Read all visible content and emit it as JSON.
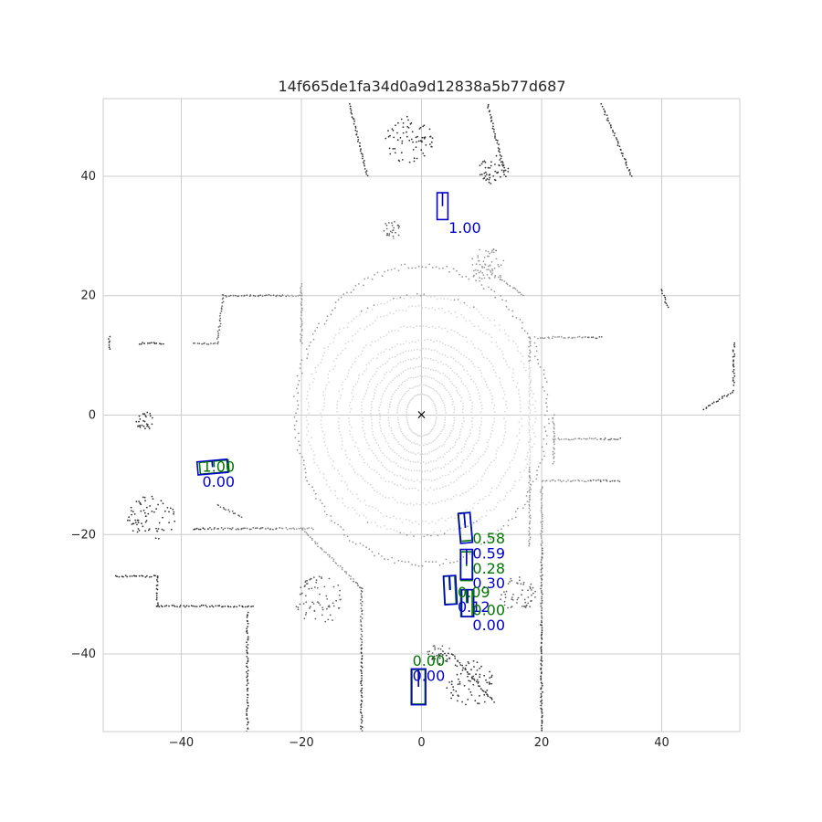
{
  "chart_data": {
    "type": "scatter",
    "title": "14f665de1fa34d0a9d12838a5b77d687",
    "xlabel": "",
    "ylabel": "",
    "xlim": [
      -53,
      53
    ],
    "ylim": [
      -53,
      53
    ],
    "grid": true,
    "x_ticks": [
      {
        "value": -40,
        "label": "−40"
      },
      {
        "value": -20,
        "label": "−20"
      },
      {
        "value": 0,
        "label": "0"
      },
      {
        "value": 20,
        "label": "20"
      },
      {
        "value": 40,
        "label": "40"
      }
    ],
    "y_ticks": [
      {
        "value": 40,
        "label": "40"
      },
      {
        "value": 20,
        "label": "20"
      },
      {
        "value": 0,
        "label": "0"
      },
      {
        "value": -20,
        "label": "−20"
      },
      {
        "value": -40,
        "label": "−40"
      }
    ],
    "ego_marker": {
      "x": 0,
      "y": 0,
      "symbol": "×"
    },
    "colors": {
      "prediction": "#0000cc",
      "ground_truth": "#007700",
      "far_points": "#333333",
      "near_points": "#d9d9d9"
    },
    "point_clusters": [
      {
        "kind": "ring",
        "cx": 0,
        "cy": 0,
        "rx": 2.5,
        "ry": 3.5
      },
      {
        "kind": "ring",
        "cx": 0,
        "cy": 0,
        "rx": 4,
        "ry": 5
      },
      {
        "kind": "ring",
        "cx": 0,
        "cy": 0,
        "rx": 5.5,
        "ry": 6.5
      },
      {
        "kind": "ring",
        "cx": 0,
        "cy": 0,
        "rx": 7,
        "ry": 8
      },
      {
        "kind": "ring",
        "cx": 0,
        "cy": 0,
        "rx": 8.5,
        "ry": 9.5
      },
      {
        "kind": "ring",
        "cx": 0,
        "cy": 0,
        "rx": 10,
        "ry": 11
      },
      {
        "kind": "ring",
        "cx": 0,
        "cy": 0,
        "rx": 12,
        "ry": 12.5
      },
      {
        "kind": "ring",
        "cx": 0,
        "cy": 0,
        "rx": 14,
        "ry": 15
      },
      {
        "kind": "ring",
        "cx": 0,
        "cy": 0,
        "rx": 16.5,
        "ry": 18
      },
      {
        "kind": "ring",
        "cx": 0,
        "cy": 0,
        "rx": 19,
        "ry": 20
      },
      {
        "kind": "ring",
        "cx": 0,
        "cy": 0,
        "rx": 21,
        "ry": 25
      },
      {
        "kind": "line",
        "x1": -10,
        "y1": -29,
        "x2": -10,
        "y2": -53
      },
      {
        "kind": "line",
        "x1": -20,
        "y1": -19,
        "x2": -10,
        "y2": -29
      },
      {
        "kind": "line",
        "x1": -30,
        "y1": -19,
        "x2": -18,
        "y2": -19
      },
      {
        "kind": "line",
        "x1": -51,
        "y1": -27,
        "x2": -44,
        "y2": -27
      },
      {
        "kind": "line",
        "x1": -44,
        "y1": -27,
        "x2": -44,
        "y2": -32
      },
      {
        "kind": "line",
        "x1": -44,
        "y1": -32,
        "x2": -28,
        "y2": -32
      },
      {
        "kind": "line",
        "x1": -29,
        "y1": -33,
        "x2": -29,
        "y2": -53
      },
      {
        "kind": "line",
        "x1": -34,
        "y1": -15,
        "x2": -30,
        "y2": -17
      },
      {
        "kind": "line",
        "x1": -38,
        "y1": 12,
        "x2": -34,
        "y2": 12
      },
      {
        "kind": "line",
        "x1": -34,
        "y1": 12,
        "x2": -33,
        "y2": 20
      },
      {
        "kind": "line",
        "x1": -33,
        "y1": 20,
        "x2": -20,
        "y2": 20
      },
      {
        "kind": "line",
        "x1": -52,
        "y1": 11,
        "x2": -52,
        "y2": 13
      },
      {
        "kind": "line",
        "x1": -47,
        "y1": 12,
        "x2": -43,
        "y2": 12
      },
      {
        "kind": "line",
        "x1": 20,
        "y1": -12,
        "x2": 20,
        "y2": -53
      },
      {
        "kind": "line",
        "x1": 20,
        "y1": -11,
        "x2": 33,
        "y2": -11
      },
      {
        "kind": "line",
        "x1": 22,
        "y1": 0,
        "x2": 22,
        "y2": -8
      },
      {
        "kind": "line",
        "x1": 22,
        "y1": -4,
        "x2": 33,
        "y2": -4
      },
      {
        "kind": "line",
        "x1": 19,
        "y1": 13,
        "x2": 30,
        "y2": 13
      },
      {
        "kind": "line",
        "x1": 18,
        "y1": 13,
        "x2": 18,
        "y2": -22
      },
      {
        "kind": "line",
        "x1": 30,
        "y1": 52,
        "x2": 35,
        "y2": 40
      },
      {
        "kind": "line",
        "x1": 40,
        "y1": 21,
        "x2": 41,
        "y2": 18
      },
      {
        "kind": "line",
        "x1": 47,
        "y1": 1,
        "x2": 52,
        "y2": 4
      },
      {
        "kind": "line",
        "x1": 52,
        "y1": 5,
        "x2": 52,
        "y2": 12
      },
      {
        "kind": "line",
        "x1": 10,
        "y1": 25,
        "x2": 17,
        "y2": 20
      },
      {
        "kind": "line",
        "x1": -20,
        "y1": 22,
        "x2": -20,
        "y2": 12
      },
      {
        "kind": "line",
        "x1": 11,
        "y1": 52,
        "x2": 14,
        "y2": 40
      },
      {
        "kind": "line",
        "x1": -12,
        "y1": 52,
        "x2": -9,
        "y2": 40
      },
      {
        "kind": "line",
        "x1": -38,
        "y1": -19,
        "x2": -30,
        "y2": -19
      },
      {
        "kind": "line",
        "x1": 5,
        "y1": -40,
        "x2": 12,
        "y2": -48
      },
      {
        "kind": "blob",
        "x": -5,
        "y": 31,
        "r": 1.5
      },
      {
        "kind": "blob",
        "x": 12,
        "y": 41,
        "r": 2.5
      },
      {
        "kind": "blob",
        "x": 11,
        "y": 25,
        "r": 3
      },
      {
        "kind": "blob",
        "x": -17,
        "y": -31,
        "r": 4
      },
      {
        "kind": "blob",
        "x": 8,
        "y": -45,
        "r": 4
      },
      {
        "kind": "blob",
        "x": 16,
        "y": -30,
        "r": 3
      },
      {
        "kind": "blob",
        "x": -45,
        "y": -17,
        "r": 4
      },
      {
        "kind": "blob",
        "x": -46,
        "y": -1,
        "r": 1.5
      },
      {
        "kind": "blob",
        "x": -2,
        "y": 46,
        "r": 4
      },
      {
        "kind": "blob",
        "x": 3,
        "y": -40,
        "r": 2
      }
    ],
    "boxes": [
      {
        "set": "prediction",
        "cx": 3.5,
        "cy": 35,
        "w": 1.8,
        "l": 4.5,
        "heading": 0,
        "score_label": "1.00",
        "label_x": 4.5,
        "label_y": 30.5
      },
      {
        "set": "ground_truth",
        "cx": -34.5,
        "cy": -8.7,
        "w": 4.8,
        "l": 2.0,
        "heading": 5,
        "score_label": "1.00",
        "label_x": -36.5,
        "label_y": -9.5
      },
      {
        "set": "prediction",
        "cx": -34.8,
        "cy": -8.7,
        "w": 5.0,
        "l": 2.2,
        "heading": 5,
        "score_label": "0.00",
        "label_x": -36.5,
        "label_y": -12.0
      },
      {
        "set": "ground_truth",
        "cx": 7.3,
        "cy": -18.7,
        "w": 1.9,
        "l": 4.7,
        "heading": 5,
        "score_label": "0.58",
        "label_x": 8.5,
        "label_y": -21.5
      },
      {
        "set": "prediction",
        "cx": 7.3,
        "cy": -18.9,
        "w": 2.0,
        "l": 5.0,
        "heading": 5,
        "score_label": "0.59",
        "label_x": 8.5,
        "label_y": -24.0
      },
      {
        "set": "ground_truth",
        "cx": 7.5,
        "cy": -25.3,
        "w": 1.9,
        "l": 4.8,
        "heading": 0,
        "score_label": "0.28",
        "label_x": 8.5,
        "label_y": -26.5
      },
      {
        "set": "prediction",
        "cx": 7.5,
        "cy": -25.0,
        "w": 2.0,
        "l": 5.0,
        "heading": 0,
        "score_label": "0.30",
        "label_x": 8.5,
        "label_y": -29.0
      },
      {
        "set": "ground_truth",
        "cx": 4.7,
        "cy": -29.3,
        "w": 1.9,
        "l": 4.7,
        "heading": 3,
        "score_label": "0.09",
        "label_x": 6.0,
        "label_y": -30.5
      },
      {
        "set": "prediction",
        "cx": 4.8,
        "cy": -29.3,
        "w": 2.0,
        "l": 4.8,
        "heading": 3,
        "score_label": "0.12",
        "label_x": 6.0,
        "label_y": -33.0
      },
      {
        "set": "ground_truth",
        "cx": 7.5,
        "cy": -31.5,
        "w": 1.9,
        "l": 4.5,
        "heading": 0,
        "score_label": "0.00",
        "label_x": 8.5,
        "label_y": -33.5
      },
      {
        "set": "prediction",
        "cx": 7.7,
        "cy": -31.5,
        "w": 2.0,
        "l": 4.5,
        "heading": 0,
        "score_label": "0.00",
        "label_x": 8.5,
        "label_y": -36.0
      },
      {
        "set": "ground_truth",
        "cx": -0.5,
        "cy": -45.5,
        "w": 2.2,
        "l": 5.8,
        "heading": 0,
        "score_label": "0.00",
        "label_x": -1.5,
        "label_y": -42.0
      },
      {
        "set": "prediction",
        "cx": -0.5,
        "cy": -45.5,
        "w": 2.4,
        "l": 6.0,
        "heading": 0,
        "score_label": "0.00",
        "label_x": -1.5,
        "label_y": -44.5
      }
    ]
  }
}
